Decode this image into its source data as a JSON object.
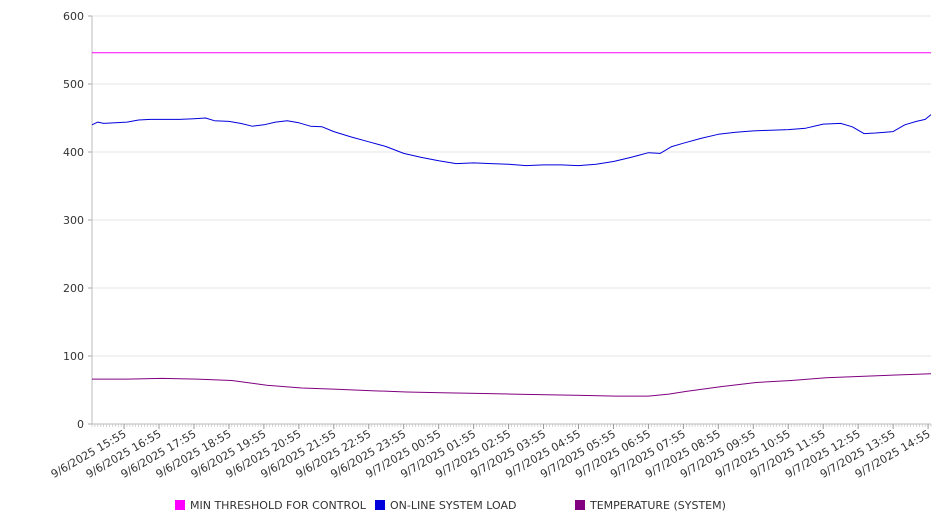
{
  "chart_data": {
    "type": "line",
    "title": "",
    "xlabel": "",
    "ylabel": "",
    "ylim": [
      0,
      600
    ],
    "yticks": [
      0,
      100,
      200,
      300,
      400,
      500,
      600
    ],
    "grid": true,
    "legend_position": "bottom",
    "x_tick_labels": [
      "9/6/2025 15:55",
      "9/6/2025 16:55",
      "9/6/2025 17:55",
      "9/6/2025 18:55",
      "9/6/2025 19:55",
      "9/6/2025 20:55",
      "9/6/2025 21:55",
      "9/6/2025 22:55",
      "9/6/2025 23:55",
      "9/7/2025 00:55",
      "9/7/2025 01:55",
      "9/7/2025 02:55",
      "9/7/2025 03:55",
      "9/7/2025 04:55",
      "9/7/2025 05:55",
      "9/7/2025 06:55",
      "9/7/2025 07:55",
      "9/7/2025 08:55",
      "9/7/2025 09:55",
      "9/7/2025 10:55",
      "9/7/2025 11:55",
      "9/7/2025 12:55",
      "9/7/2025 13:55",
      "9/7/2025 14:55"
    ],
    "x_start_label": "9/6/2025 15:00",
    "x_end_label": "9/7/2025 15:00",
    "series": [
      {
        "name": "MIN THRESHOLD FOR CONTROL",
        "color": "#ff00ff",
        "points": [
          [
            "9/6/2025 15:00",
            546
          ],
          [
            "9/7/2025 15:00",
            546
          ]
        ]
      },
      {
        "name": "ON-LINE SYSTEM LOAD",
        "color": "#0000dd",
        "points": [
          [
            "9/6/2025 15:00",
            440
          ],
          [
            "9/6/2025 15:10",
            444
          ],
          [
            "9/6/2025 15:20",
            442
          ],
          [
            "9/6/2025 15:40",
            443
          ],
          [
            "9/6/2025 16:00",
            444
          ],
          [
            "9/6/2025 16:20",
            447
          ],
          [
            "9/6/2025 16:40",
            448
          ],
          [
            "9/6/2025 17:00",
            448
          ],
          [
            "9/6/2025 17:30",
            448
          ],
          [
            "9/6/2025 17:55",
            449
          ],
          [
            "9/6/2025 18:15",
            450
          ],
          [
            "9/6/2025 18:30",
            446
          ],
          [
            "9/6/2025 18:55",
            445
          ],
          [
            "9/6/2025 19:15",
            442
          ],
          [
            "9/6/2025 19:35",
            438
          ],
          [
            "9/6/2025 19:55",
            440
          ],
          [
            "9/6/2025 20:15",
            444
          ],
          [
            "9/6/2025 20:35",
            446
          ],
          [
            "9/6/2025 20:55",
            443
          ],
          [
            "9/6/2025 21:15",
            438
          ],
          [
            "9/6/2025 21:35",
            437
          ],
          [
            "9/6/2025 21:55",
            430
          ],
          [
            "9/6/2025 22:25",
            422
          ],
          [
            "9/6/2025 22:55",
            415
          ],
          [
            "9/6/2025 23:25",
            408
          ],
          [
            "9/6/2025 23:55",
            398
          ],
          [
            "9/7/2025 00:25",
            392
          ],
          [
            "9/7/2025 00:55",
            387
          ],
          [
            "9/7/2025 01:25",
            383
          ],
          [
            "9/7/2025 01:55",
            384
          ],
          [
            "9/7/2025 02:25",
            383
          ],
          [
            "9/7/2025 02:55",
            382
          ],
          [
            "9/7/2025 03:25",
            380
          ],
          [
            "9/7/2025 03:55",
            381
          ],
          [
            "9/7/2025 04:25",
            381
          ],
          [
            "9/7/2025 04:55",
            380
          ],
          [
            "9/7/2025 05:25",
            382
          ],
          [
            "9/7/2025 05:55",
            386
          ],
          [
            "9/7/2025 06:25",
            392
          ],
          [
            "9/7/2025 06:55",
            399
          ],
          [
            "9/7/2025 07:15",
            398
          ],
          [
            "9/7/2025 07:35",
            408
          ],
          [
            "9/7/2025 07:55",
            413
          ],
          [
            "9/7/2025 08:25",
            420
          ],
          [
            "9/7/2025 08:55",
            426
          ],
          [
            "9/7/2025 09:25",
            429
          ],
          [
            "9/7/2025 09:55",
            431
          ],
          [
            "9/7/2025 10:25",
            432
          ],
          [
            "9/7/2025 10:55",
            433
          ],
          [
            "9/7/2025 11:25",
            435
          ],
          [
            "9/7/2025 11:55",
            441
          ],
          [
            "9/7/2025 12:25",
            442
          ],
          [
            "9/7/2025 12:45",
            437
          ],
          [
            "9/7/2025 13:05",
            427
          ],
          [
            "9/7/2025 13:25",
            428
          ],
          [
            "9/7/2025 13:55",
            430
          ],
          [
            "9/7/2025 14:15",
            440
          ],
          [
            "9/7/2025 14:35",
            445
          ],
          [
            "9/7/2025 14:50",
            448
          ],
          [
            "9/7/2025 15:00",
            455
          ]
        ]
      },
      {
        "name": "TEMPERATURE (SYSTEM)",
        "color": "#800080",
        "points": [
          [
            "9/6/2025 15:00",
            66
          ],
          [
            "9/6/2025 16:00",
            66
          ],
          [
            "9/6/2025 17:00",
            67
          ],
          [
            "9/6/2025 18:00",
            66
          ],
          [
            "9/6/2025 19:00",
            64
          ],
          [
            "9/6/2025 20:00",
            57
          ],
          [
            "9/6/2025 21:00",
            53
          ],
          [
            "9/6/2025 22:00",
            51
          ],
          [
            "9/6/2025 23:00",
            49
          ],
          [
            "9/7/2025 00:00",
            47
          ],
          [
            "9/7/2025 01:00",
            46
          ],
          [
            "9/7/2025 02:00",
            45
          ],
          [
            "9/7/2025 03:00",
            44
          ],
          [
            "9/7/2025 04:00",
            43
          ],
          [
            "9/7/2025 05:00",
            42
          ],
          [
            "9/7/2025 06:00",
            41
          ],
          [
            "9/7/2025 06:55",
            41
          ],
          [
            "9/7/2025 07:30",
            44
          ],
          [
            "9/7/2025 08:00",
            48
          ],
          [
            "9/7/2025 09:00",
            55
          ],
          [
            "9/7/2025 10:00",
            61
          ],
          [
            "9/7/2025 11:00",
            64
          ],
          [
            "9/7/2025 12:00",
            68
          ],
          [
            "9/7/2025 13:00",
            70
          ],
          [
            "9/7/2025 14:00",
            72
          ],
          [
            "9/7/2025 15:00",
            74
          ]
        ]
      }
    ]
  }
}
